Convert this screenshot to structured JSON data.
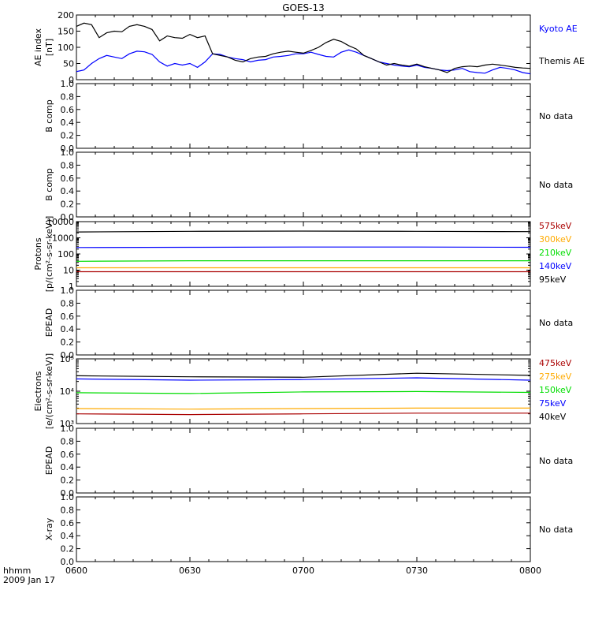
{
  "title": "GOES-13",
  "time_axis": {
    "label_line1": "hhmm",
    "label_line2": "2009 Jan 17",
    "ticks": [
      "0600",
      "0630",
      "0700",
      "0730",
      "0800"
    ]
  },
  "colors": {
    "axis": "#000000",
    "blue": "#0000ff",
    "black": "#000000",
    "green": "#00dd00",
    "orange": "#ffaa00",
    "red": "#aa0000"
  },
  "chart_data": [
    {
      "id": "ae",
      "type": "line",
      "ylabel_line1": "AE index",
      "ylabel_line2": "[nT]",
      "ylim": [
        0,
        200
      ],
      "yticks": [
        "0",
        "50",
        "100",
        "150",
        "200"
      ],
      "x_unit": "minutes after 0600",
      "series": [
        {
          "name": "Kyoto AE",
          "color": "#0000ff",
          "x": [
            0,
            2,
            4,
            6,
            8,
            10,
            12,
            14,
            16,
            18,
            20,
            22,
            24,
            26,
            28,
            30,
            32,
            34,
            36,
            38,
            40,
            42,
            44,
            46,
            48,
            50,
            52,
            54,
            56,
            58,
            60,
            62,
            64,
            66,
            68,
            70,
            72,
            74,
            76,
            78,
            80,
            82,
            84,
            86,
            88,
            90,
            92,
            94,
            96,
            98,
            100,
            102,
            104,
            106,
            108,
            110,
            112,
            114,
            116,
            118,
            120
          ],
          "y": [
            25,
            30,
            50,
            65,
            75,
            70,
            65,
            80,
            88,
            86,
            78,
            55,
            42,
            50,
            45,
            50,
            38,
            55,
            80,
            78,
            70,
            65,
            62,
            55,
            60,
            62,
            70,
            72,
            75,
            80,
            80,
            85,
            78,
            72,
            70,
            85,
            92,
            85,
            75,
            65,
            55,
            50,
            45,
            42,
            40,
            45,
            38,
            35,
            30,
            28,
            30,
            35,
            25,
            22,
            20,
            30,
            38,
            35,
            30,
            22,
            18
          ]
        },
        {
          "name": "Themis AE",
          "color": "#000000",
          "x": [
            0,
            2,
            4,
            6,
            8,
            10,
            12,
            14,
            16,
            18,
            20,
            22,
            24,
            26,
            28,
            30,
            32,
            34,
            36,
            38,
            40,
            42,
            44,
            46,
            48,
            50,
            52,
            54,
            56,
            58,
            60,
            62,
            64,
            66,
            68,
            70,
            72,
            74,
            76,
            78,
            80,
            82,
            84,
            86,
            88,
            90,
            92,
            94,
            96,
            98,
            100,
            102,
            104,
            106,
            108,
            110,
            112,
            114,
            116,
            118,
            120
          ],
          "y": [
            165,
            175,
            170,
            130,
            145,
            150,
            148,
            165,
            170,
            165,
            155,
            120,
            135,
            130,
            128,
            140,
            130,
            135,
            80,
            75,
            70,
            60,
            55,
            65,
            70,
            72,
            80,
            85,
            88,
            85,
            82,
            90,
            100,
            115,
            125,
            118,
            105,
            95,
            75,
            65,
            55,
            45,
            50,
            45,
            42,
            48,
            40,
            35,
            30,
            22,
            35,
            40,
            42,
            40,
            45,
            48,
            45,
            42,
            38,
            36,
            35
          ]
        }
      ]
    },
    {
      "id": "bcomp1",
      "type": "line",
      "ylabel_line1": "B comp",
      "ylim": [
        0,
        1
      ],
      "yticks": [
        "0.0",
        "0.2",
        "0.4",
        "0.6",
        "0.8",
        "1.0"
      ],
      "note": "No data"
    },
    {
      "id": "bcomp2",
      "type": "line",
      "ylabel_line1": "B comp",
      "ylim": [
        0,
        1
      ],
      "yticks": [
        "0.0",
        "0.2",
        "0.4",
        "0.6",
        "0.8",
        "1.0"
      ],
      "note": "No data"
    },
    {
      "id": "protons",
      "type": "line",
      "scale": "log",
      "ylabel_line1": "Protons",
      "ylabel_line2": "[p/(cm²-s-sr-keV)]",
      "ylim": [
        1,
        10000
      ],
      "yticks": [
        "1",
        "10",
        "100",
        "1000",
        "10000"
      ],
      "series": [
        {
          "name": "575keV",
          "color": "#aa0000",
          "x": [
            0,
            30,
            60,
            90,
            120
          ],
          "y": [
            8,
            8,
            8,
            8,
            8
          ]
        },
        {
          "name": "300keV",
          "color": "#ffaa00",
          "x": [
            0,
            30,
            60,
            90,
            120
          ],
          "y": [
            14,
            14,
            14,
            14,
            14
          ]
        },
        {
          "name": "210keV",
          "color": "#00dd00",
          "x": [
            0,
            30,
            60,
            90,
            120
          ],
          "y": [
            35,
            38,
            38,
            38,
            38
          ]
        },
        {
          "name": "140keV",
          "color": "#0000ff",
          "x": [
            0,
            30,
            60,
            90,
            120
          ],
          "y": [
            250,
            260,
            270,
            270,
            260
          ]
        },
        {
          "name": "95keV",
          "color": "#000000",
          "x": [
            0,
            30,
            60,
            90,
            120
          ],
          "y": [
            2300,
            2500,
            2600,
            2500,
            2400
          ]
        }
      ]
    },
    {
      "id": "epead1",
      "type": "line",
      "ylabel_line1": "EPEAD",
      "ylim": [
        0,
        1
      ],
      "yticks": [
        "0.0",
        "0.2",
        "0.4",
        "0.6",
        "0.8",
        "1.0"
      ],
      "note": "No data"
    },
    {
      "id": "electrons",
      "type": "line",
      "scale": "log",
      "ylabel_line1": "Electrons",
      "ylabel_line2": "[e/(cm²-s-sr-keV)]",
      "ylim": [
        1000,
        100000
      ],
      "yticks": [
        "10³",
        "10⁴",
        "10⁵"
      ],
      "series": [
        {
          "name": "475keV",
          "color": "#aa0000",
          "x": [
            0,
            30,
            60,
            90,
            120
          ],
          "y": [
            2000,
            1900,
            2000,
            2100,
            2100
          ]
        },
        {
          "name": "275keV",
          "color": "#ffaa00",
          "x": [
            0,
            30,
            60,
            90,
            120
          ],
          "y": [
            2900,
            2800,
            2900,
            3000,
            3000
          ]
        },
        {
          "name": "150keV",
          "color": "#00dd00",
          "x": [
            0,
            30,
            60,
            90,
            120
          ],
          "y": [
            9000,
            8500,
            9500,
            9800,
            9200
          ]
        },
        {
          "name": "75keV",
          "color": "#0000ff",
          "x": [
            0,
            30,
            60,
            90,
            120
          ],
          "y": [
            24000,
            22000,
            23000,
            26000,
            22000
          ]
        },
        {
          "name": "40keV",
          "color": "#000000",
          "x": [
            0,
            30,
            60,
            90,
            120
          ],
          "y": [
            30000,
            28000,
            27000,
            36000,
            31000
          ]
        }
      ]
    },
    {
      "id": "epead2",
      "type": "line",
      "ylabel_line1": "EPEAD",
      "ylim": [
        0,
        1
      ],
      "yticks": [
        "0.0",
        "0.2",
        "0.4",
        "0.6",
        "0.8",
        "1.0"
      ],
      "note": "No data"
    },
    {
      "id": "xray",
      "type": "line",
      "ylabel_line1": "X-ray",
      "ylim": [
        0,
        1
      ],
      "yticks": [
        "0.0",
        "0.2",
        "0.4",
        "0.6",
        "0.8",
        "1.0"
      ],
      "note": "No data"
    }
  ]
}
